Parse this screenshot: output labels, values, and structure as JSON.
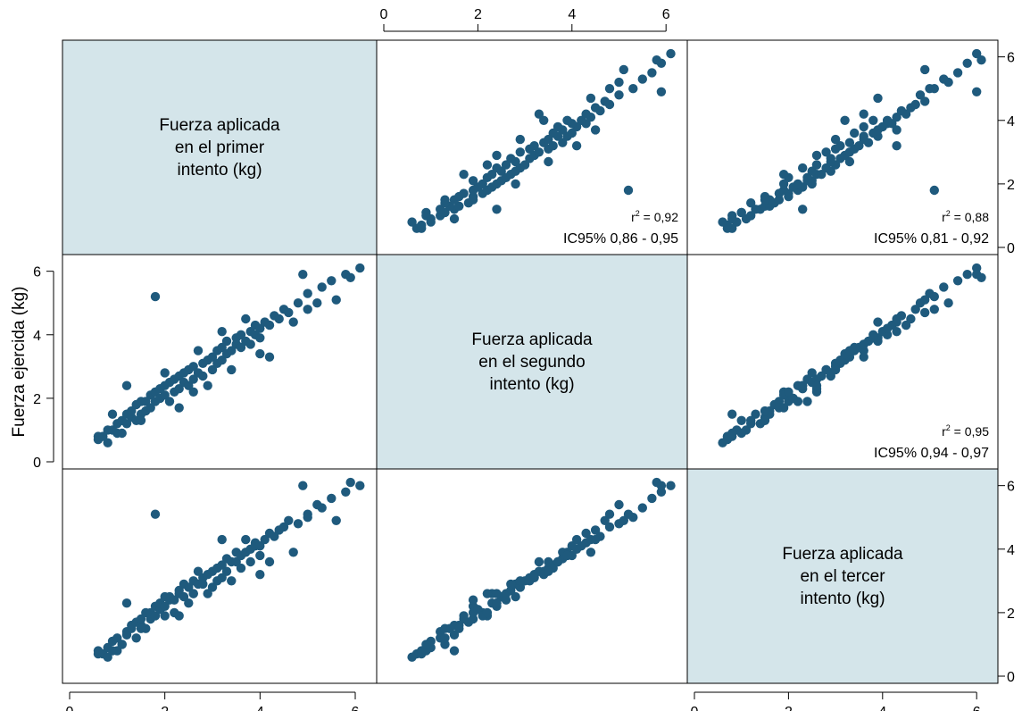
{
  "chart_data": {
    "type": "scatter",
    "style": {
      "marker_color": "#1f5a7d",
      "diagonal_fill": "#d4e5ea",
      "axis_color": "#000000"
    },
    "axis_range": [
      0,
      6.3
    ],
    "ticks": [
      0,
      2,
      4,
      6
    ],
    "y_axis_label": "Fuerza ejercida (kg)",
    "variables": [
      {
        "id": "v1",
        "label_lines": [
          "Fuerza aplicada",
          "en el primer",
          "intento (kg)"
        ]
      },
      {
        "id": "v2",
        "label_lines": [
          "Fuerza aplicada",
          "en el segundo",
          "intento (kg)"
        ]
      },
      {
        "id": "v3",
        "label_lines": [
          "Fuerza aplicada",
          "en el tercer",
          "intento (kg)"
        ]
      }
    ],
    "correlations": [
      {
        "row": 0,
        "col": 1,
        "r2_prefix": "r",
        "r2_sup": "2",
        "r2_value": " = 0,92",
        "ci": "IC95% 0,86 - 0,95"
      },
      {
        "row": 0,
        "col": 2,
        "r2_prefix": "r",
        "r2_sup": "2",
        "r2_value": " = 0,88",
        "ci": "IC95% 0,81 - 0,92"
      },
      {
        "row": 1,
        "col": 2,
        "r2_prefix": "r",
        "r2_sup": "2",
        "r2_value": " = 0,95",
        "ci": "IC95% 0,94 - 0,97"
      }
    ],
    "observations": [
      [
        0.6,
        0.7,
        0.7
      ],
      [
        0.6,
        0.8,
        0.8
      ],
      [
        0.7,
        0.8,
        0.7
      ],
      [
        0.8,
        0.6,
        0.6
      ],
      [
        0.8,
        1.0,
        0.9
      ],
      [
        0.9,
        1.0,
        1.1
      ],
      [
        1.0,
        0.9,
        0.8
      ],
      [
        1.0,
        1.2,
        1.2
      ],
      [
        1.1,
        1.3,
        1.0
      ],
      [
        1.2,
        1.2,
        1.4
      ],
      [
        1.2,
        1.5,
        1.3
      ],
      [
        1.3,
        1.4,
        1.5
      ],
      [
        1.3,
        1.6,
        1.6
      ],
      [
        1.4,
        1.3,
        1.2
      ],
      [
        1.4,
        1.8,
        1.7
      ],
      [
        1.5,
        1.5,
        1.6
      ],
      [
        1.5,
        1.9,
        1.8
      ],
      [
        1.6,
        1.6,
        1.5
      ],
      [
        1.6,
        1.9,
        2.0
      ],
      [
        1.7,
        1.7,
        1.8
      ],
      [
        1.7,
        2.1,
        2.0
      ],
      [
        1.8,
        1.9,
        2.2
      ],
      [
        1.8,
        2.2,
        1.9
      ],
      [
        1.9,
        2.0,
        2.1
      ],
      [
        1.9,
        2.3,
        2.3
      ],
      [
        2.0,
        2.1,
        1.9
      ],
      [
        2.0,
        2.4,
        2.2
      ],
      [
        2.1,
        1.9,
        2.4
      ],
      [
        2.1,
        2.5,
        2.5
      ],
      [
        2.2,
        2.2,
        2.0
      ],
      [
        2.2,
        2.6,
        2.4
      ],
      [
        2.3,
        2.3,
        2.6
      ],
      [
        2.3,
        2.7,
        2.7
      ],
      [
        2.4,
        2.5,
        2.5
      ],
      [
        2.4,
        2.8,
        2.9
      ],
      [
        2.5,
        2.4,
        2.3
      ],
      [
        2.5,
        2.9,
        2.8
      ],
      [
        2.6,
        2.6,
        2.6
      ],
      [
        2.6,
        3.0,
        3.0
      ],
      [
        2.7,
        2.8,
        2.9
      ],
      [
        2.8,
        3.1,
        3.1
      ],
      [
        2.8,
        2.7,
        2.9
      ],
      [
        2.9,
        3.2,
        3.2
      ],
      [
        3.0,
        2.9,
        2.8
      ],
      [
        3.0,
        3.3,
        3.3
      ],
      [
        3.1,
        3.1,
        3.0
      ],
      [
        3.1,
        3.5,
        3.4
      ],
      [
        3.2,
        3.2,
        3.1
      ],
      [
        3.2,
        3.6,
        3.5
      ],
      [
        3.3,
        3.4,
        3.3
      ],
      [
        3.3,
        3.8,
        3.7
      ],
      [
        3.4,
        3.5,
        3.6
      ],
      [
        3.5,
        3.7,
        3.6
      ],
      [
        3.5,
        3.9,
        3.9
      ],
      [
        3.6,
        3.6,
        3.4
      ],
      [
        3.6,
        4.0,
        3.8
      ],
      [
        3.7,
        3.8,
        3.9
      ],
      [
        3.8,
        4.1,
        4.0
      ],
      [
        3.8,
        3.7,
        3.6
      ],
      [
        3.9,
        4.0,
        4.1
      ],
      [
        3.9,
        4.3,
        4.2
      ],
      [
        4.0,
        4.2,
        4.1
      ],
      [
        4.0,
        3.9,
        3.8
      ],
      [
        4.1,
        4.4,
        4.3
      ],
      [
        4.2,
        4.3,
        4.5
      ],
      [
        4.3,
        4.6,
        4.4
      ],
      [
        4.4,
        4.5,
        4.6
      ],
      [
        4.5,
        4.8,
        4.7
      ],
      [
        4.6,
        4.7,
        4.9
      ],
      [
        4.8,
        5.0,
        4.8
      ],
      [
        5.0,
        4.8,
        5.1
      ],
      [
        5.0,
        5.3,
        5.0
      ],
      [
        5.3,
        5.5,
        5.3
      ],
      [
        5.5,
        5.7,
        5.6
      ],
      [
        5.8,
        5.9,
        5.8
      ],
      [
        6.1,
        6.1,
        6.0
      ],
      [
        1.8,
        5.2,
        5.1
      ],
      [
        0.9,
        1.5,
        0.8
      ],
      [
        4.7,
        4.4,
        3.9
      ],
      [
        3.4,
        2.9,
        3.0
      ],
      [
        2.6,
        2.2,
        2.6
      ],
      [
        1.2,
        2.4,
        2.3
      ],
      [
        4.2,
        3.3,
        3.6
      ],
      [
        5.6,
        5.1,
        4.9
      ],
      [
        2.0,
        2.8,
        2.5
      ],
      [
        3.7,
        4.5,
        4.3
      ],
      [
        5.9,
        5.8,
        6.1
      ],
      [
        1.5,
        1.3,
        1.5
      ],
      [
        2.9,
        2.4,
        2.6
      ],
      [
        4.9,
        5.9,
        6.0
      ],
      [
        3.2,
        4.1,
        4.3
      ],
      [
        2.3,
        1.7,
        1.9
      ],
      [
        4.0,
        3.4,
        3.2
      ],
      [
        1.1,
        0.9,
        1.0
      ],
      [
        5.2,
        5.0,
        5.4
      ],
      [
        2.7,
        3.5,
        3.3
      ]
    ]
  }
}
